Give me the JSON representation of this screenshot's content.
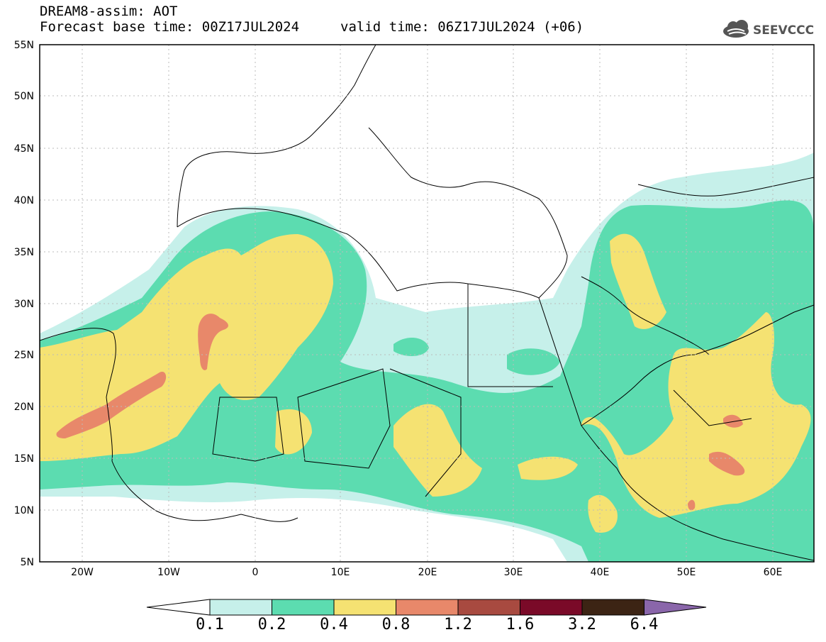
{
  "header": {
    "title": "DREAM8-assim: AOT",
    "base_time": "Forecast base time: 00Z17JUL2024",
    "valid_time": "valid time: 06Z17JUL2024 (+06)",
    "logo_text": "SEEVCCC"
  },
  "axes": {
    "lat_labels": [
      "55N",
      "50N",
      "45N",
      "40N",
      "35N",
      "30N",
      "25N",
      "20N",
      "15N",
      "10N",
      "5N"
    ],
    "lon_labels": [
      "20W",
      "10W",
      "0",
      "10E",
      "20E",
      "30E",
      "40E",
      "50E",
      "60E"
    ]
  },
  "colorbar": {
    "levels": [
      "0.1",
      "0.2",
      "0.4",
      "0.8",
      "1.2",
      "1.6",
      "3.2",
      "6.4"
    ],
    "colors": [
      "#c6f0ea",
      "#5cdcb0",
      "#f5e272",
      "#e8886a",
      "#a84a40",
      "#7a0a28",
      "#3c2414",
      "#8a66aa"
    ]
  }
}
